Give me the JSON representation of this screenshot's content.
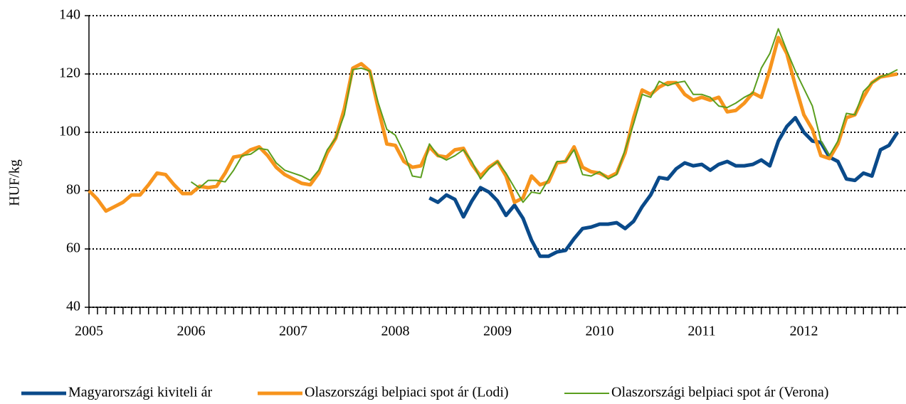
{
  "chart_data": {
    "type": "line",
    "y_label": "HUF/kg",
    "categories": [
      "2005",
      null,
      null,
      null,
      null,
      null,
      null,
      null,
      null,
      null,
      null,
      null,
      "2006",
      null,
      null,
      null,
      null,
      null,
      null,
      null,
      null,
      null,
      null,
      null,
      "2007",
      null,
      null,
      null,
      null,
      null,
      null,
      null,
      null,
      null,
      null,
      null,
      "2008",
      null,
      null,
      null,
      null,
      null,
      null,
      null,
      null,
      null,
      null,
      null,
      "2009",
      null,
      null,
      null,
      null,
      null,
      null,
      null,
      null,
      null,
      null,
      null,
      "2010",
      null,
      null,
      null,
      null,
      null,
      null,
      null,
      null,
      null,
      null,
      null,
      "2011",
      null,
      null,
      null,
      null,
      null,
      null,
      null,
      null,
      null,
      null,
      null,
      "2012",
      null,
      null,
      null,
      null,
      null,
      null,
      null,
      null,
      null,
      null,
      null
    ],
    "series": [
      {
        "name": "Magyarországi kiviteli ár",
        "color": "#0a4a8a",
        "width": 5,
        "values": [
          null,
          null,
          null,
          null,
          null,
          null,
          null,
          null,
          null,
          null,
          null,
          null,
          null,
          null,
          null,
          null,
          null,
          null,
          null,
          null,
          null,
          null,
          null,
          null,
          null,
          null,
          null,
          null,
          null,
          null,
          null,
          null,
          null,
          null,
          null,
          null,
          null,
          null,
          null,
          null,
          77.5,
          76,
          78.5,
          77,
          71,
          76.5,
          81,
          79.5,
          76.5,
          71.5,
          75,
          70.5,
          63,
          57.5,
          57.5,
          59,
          59.5,
          63.5,
          67,
          67.5,
          68.5,
          68.5,
          69,
          67,
          69.5,
          74.5,
          78.5,
          84.5,
          84,
          87.5,
          89.5,
          88.5,
          89,
          87,
          89,
          90,
          88.5,
          88.5,
          89,
          90.5,
          88.5,
          97,
          102,
          105,
          100,
          97,
          96.5,
          91.5,
          90,
          84,
          83.5,
          86,
          85,
          94,
          95.5,
          100
        ]
      },
      {
        "name": "Olaszországi belpiaci spot ár (Lodi)",
        "color": "#f7941d",
        "width": 5,
        "values": [
          80,
          77,
          73,
          74.5,
          76,
          78.5,
          78.5,
          82,
          86,
          85.5,
          82,
          79,
          79,
          81.5,
          81,
          81.5,
          86,
          91.5,
          92,
          94,
          95,
          92,
          88,
          85.5,
          84,
          82.5,
          82,
          86,
          93,
          98,
          108,
          122,
          123.5,
          121,
          108,
          96,
          95.5,
          90,
          88,
          88.5,
          95,
          92,
          91.5,
          94,
          94.5,
          89,
          85,
          88,
          90,
          85,
          76,
          77.5,
          85,
          82,
          83,
          89.5,
          90,
          95,
          88,
          86.5,
          86,
          84.5,
          86,
          93,
          105,
          114.5,
          113,
          115.5,
          117,
          117,
          113,
          111,
          112,
          111,
          112,
          107,
          107.5,
          110,
          113.5,
          112,
          121.5,
          132.5,
          127,
          116,
          106,
          101,
          92,
          91,
          96,
          105,
          106,
          112,
          117,
          119,
          119.5,
          120
        ]
      },
      {
        "name": "Olaszországi belpiaci spot ár (Verona)",
        "color": "#5a9e1e",
        "width": 2,
        "values": [
          null,
          null,
          null,
          null,
          null,
          null,
          null,
          null,
          null,
          null,
          null,
          null,
          83,
          81,
          83.5,
          83.5,
          83,
          87,
          92,
          92.5,
          94.5,
          94,
          89.5,
          87,
          86,
          85,
          83.5,
          87,
          94,
          98,
          106,
          121.5,
          122,
          121,
          110,
          101,
          99,
          93,
          85,
          84.5,
          96,
          92,
          90.5,
          92,
          94,
          90,
          84,
          87.5,
          90,
          86,
          81,
          76,
          79.5,
          79,
          84,
          90,
          90,
          94,
          85.5,
          85,
          86.5,
          84,
          85.5,
          94,
          103,
          113,
          112,
          117.5,
          116,
          117,
          117.5,
          113,
          113,
          112,
          109,
          108.5,
          110,
          112,
          113.5,
          122,
          127,
          135.5,
          128,
          121,
          115,
          109,
          97,
          92,
          97,
          106.5,
          106,
          114,
          117,
          119,
          120,
          121.5
        ]
      }
    ],
    "ylim": [
      40,
      140
    ],
    "yticks": [
      40,
      60,
      80,
      100,
      120,
      140
    ],
    "grid": true,
    "legend": "bottom"
  }
}
